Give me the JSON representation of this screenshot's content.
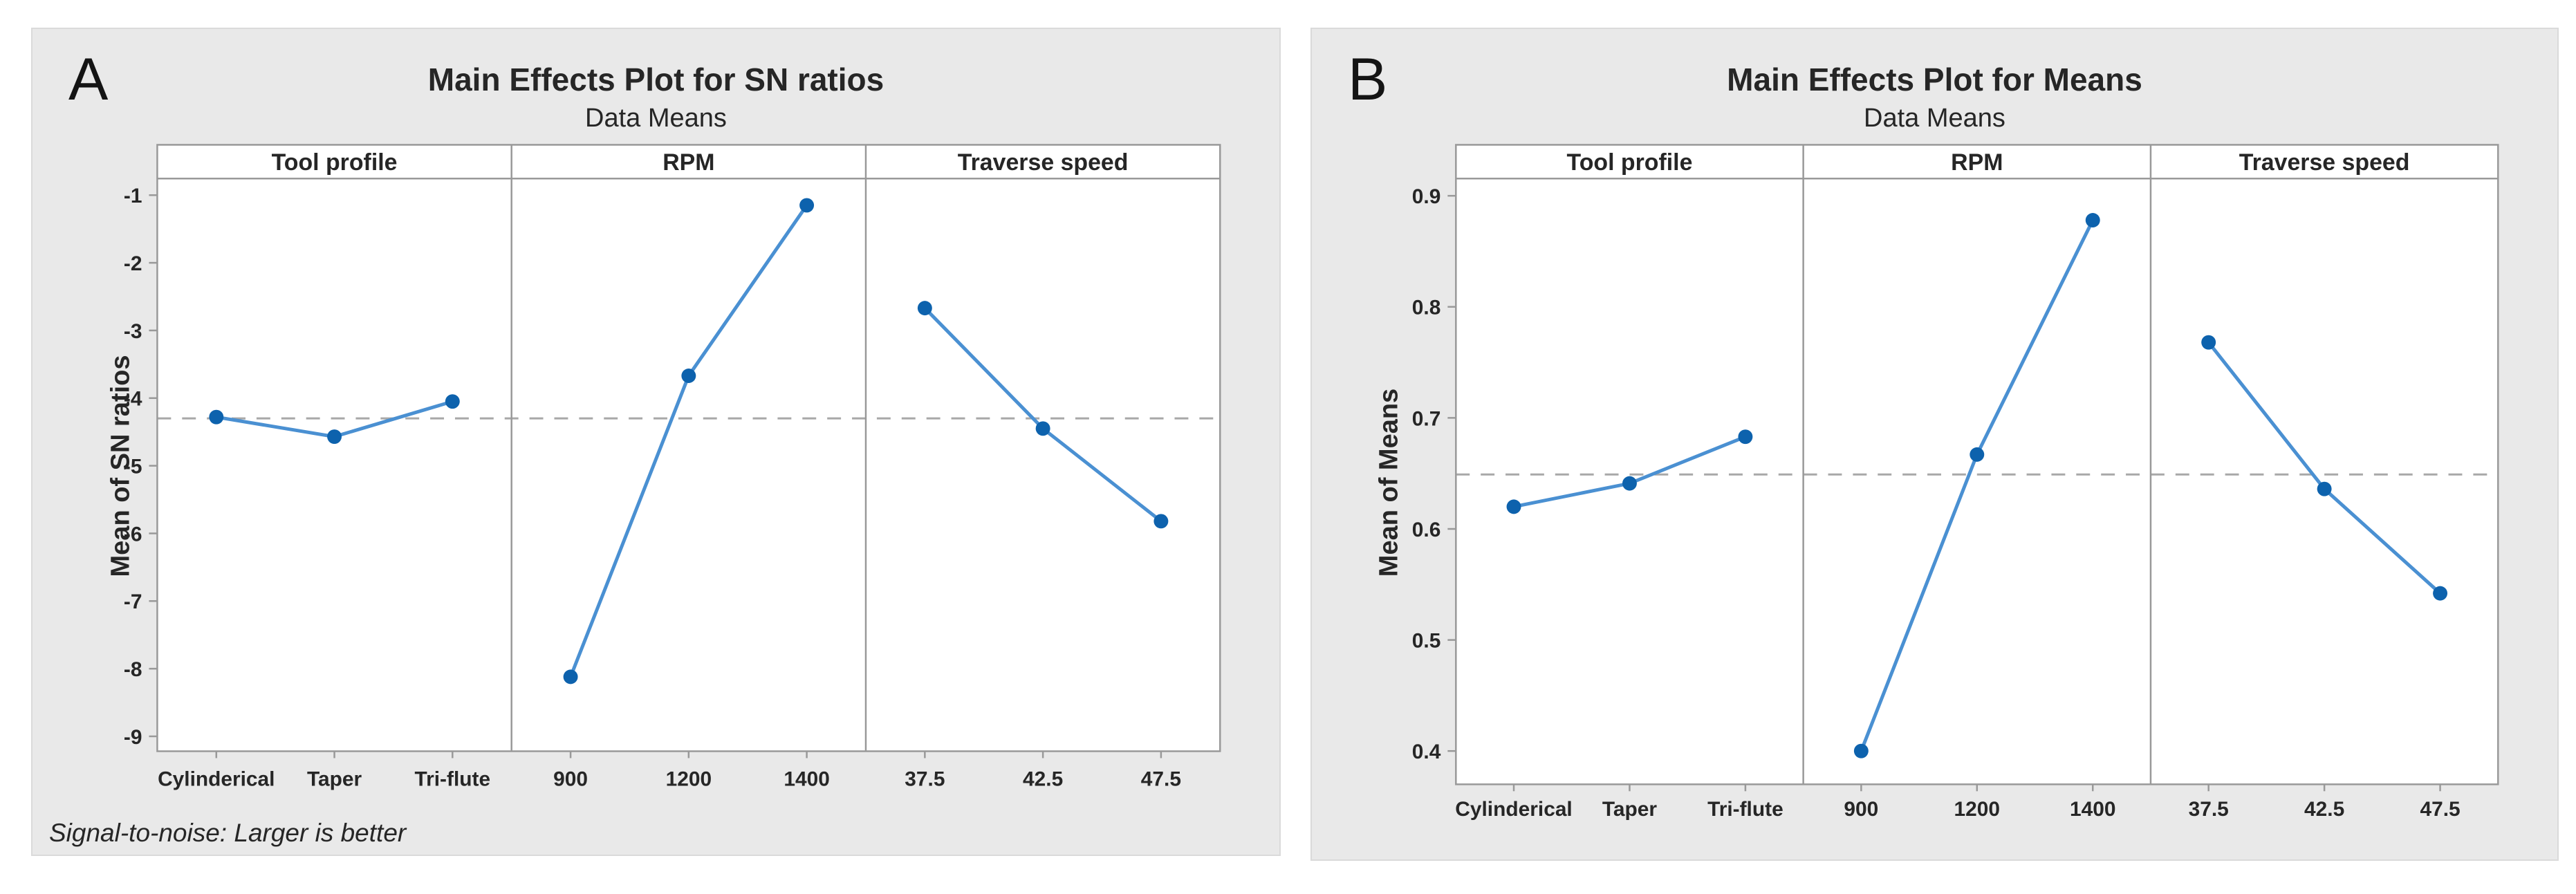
{
  "colors": {
    "chart_background": "#e9e9e9",
    "plot_background": "#ffffff",
    "axis_line": "#999999",
    "text": "#262626",
    "series_line": "#4a90d2",
    "marker": "#0d62ad",
    "mean_line": "#a8a8a8"
  },
  "chart_data": [
    {
      "type": "line",
      "panel_label": "A",
      "title": "Main Effects Plot for SN ratios",
      "subtitle": "Data Means",
      "ylabel": "Mean of SN ratios",
      "footnote": "Signal-to-noise: Larger is better",
      "ylim": [
        -9.22,
        -0.755
      ],
      "ytick_values": [
        -1,
        -2,
        -3,
        -4,
        -5,
        -6,
        -7,
        -8,
        -9
      ],
      "ytick_labels": [
        "-1",
        "-2",
        "-3",
        "-4",
        "-5",
        "-6",
        "-7",
        "-8",
        "-9"
      ],
      "overall_mean": -4.3,
      "mean_line_style": "dashed",
      "grid": false,
      "legend": "none",
      "panels": [
        {
          "header": "Tool profile",
          "categories": [
            "Cylinderical",
            "Taper",
            "Tri-flute"
          ],
          "values": [
            -4.28,
            -4.57,
            -4.05
          ]
        },
        {
          "header": "RPM",
          "categories": [
            "900",
            "1200",
            "1400"
          ],
          "values": [
            -8.12,
            -3.67,
            -1.15
          ]
        },
        {
          "header": "Traverse speed",
          "categories": [
            "37.5",
            "42.5",
            "47.5"
          ],
          "values": [
            -2.67,
            -4.45,
            -5.82
          ]
        }
      ]
    },
    {
      "type": "line",
      "panel_label": "B",
      "title": "Main Effects Plot for Means",
      "subtitle": "Data Means",
      "ylabel": "Mean of Means",
      "footnote": "",
      "ylim": [
        0.37,
        0.9155
      ],
      "ytick_values": [
        0.9,
        0.8,
        0.7,
        0.6,
        0.5,
        0.4
      ],
      "ytick_labels": [
        "0.9",
        "0.8",
        "0.7",
        "0.6",
        "0.5",
        "0.4"
      ],
      "overall_mean": 0.649,
      "mean_line_style": "dashed",
      "grid": false,
      "legend": "none",
      "panels": [
        {
          "header": "Tool profile",
          "categories": [
            "Cylinderical",
            "Taper",
            "Tri-flute"
          ],
          "values": [
            0.62,
            0.641,
            0.683
          ]
        },
        {
          "header": "RPM",
          "categories": [
            "900",
            "1200",
            "1400"
          ],
          "values": [
            0.4,
            0.667,
            0.878
          ]
        },
        {
          "header": "Traverse speed",
          "categories": [
            "37.5",
            "42.5",
            "47.5"
          ],
          "values": [
            0.768,
            0.636,
            0.542
          ]
        }
      ]
    }
  ]
}
